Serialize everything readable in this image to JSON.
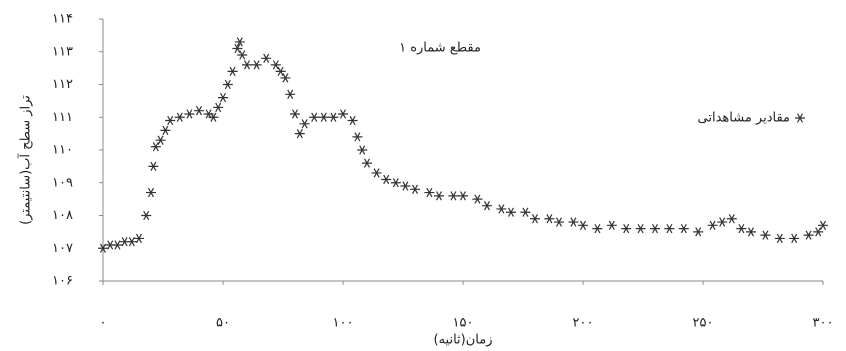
{
  "chart_data": {
    "type": "scatter",
    "title": "مقطع شماره ۱",
    "x_label": "زمان(ثانیه)",
    "y_label": "تراز سطح آب(سانتیمتر)",
    "legend_position": "right",
    "grid": false,
    "xlim": [
      0,
      300
    ],
    "ylim": [
      106,
      114
    ],
    "xticks": [
      {
        "value": 0,
        "label": "۰"
      },
      {
        "value": 50,
        "label": "۵۰"
      },
      {
        "value": 100,
        "label": "۱۰۰"
      },
      {
        "value": 150,
        "label": "۱۵۰"
      },
      {
        "value": 200,
        "label": "۲۰۰"
      },
      {
        "value": 250,
        "label": "۲۵۰"
      },
      {
        "value": 300,
        "label": "۳۰۰"
      }
    ],
    "yticks": [
      {
        "value": 106,
        "label": "۱۰۶"
      },
      {
        "value": 107,
        "label": "۱۰۷"
      },
      {
        "value": 108,
        "label": "۱۰۸"
      },
      {
        "value": 109,
        "label": "۱۰۹"
      },
      {
        "value": 110,
        "label": "۱۱۰"
      },
      {
        "value": 111,
        "label": "۱۱۱"
      },
      {
        "value": 112,
        "label": "۱۱۲"
      },
      {
        "value": 113,
        "label": "۱۱۳"
      },
      {
        "value": 114,
        "label": "۱۱۴"
      }
    ],
    "series": [
      {
        "name": "مقادیر مشاهداتی",
        "color": "#333333",
        "x": [
          0,
          3,
          6,
          9,
          12,
          15,
          18,
          20,
          21,
          22,
          24,
          26,
          28,
          32,
          36,
          40,
          44,
          46,
          48,
          50,
          52,
          54,
          56,
          57,
          58,
          60,
          64,
          68,
          72,
          74,
          76,
          78,
          80,
          82,
          84,
          88,
          92,
          96,
          100,
          104,
          106,
          108,
          110,
          114,
          118,
          122,
          126,
          130,
          136,
          140,
          146,
          150,
          156,
          160,
          166,
          170,
          176,
          180,
          186,
          190,
          196,
          200,
          206,
          212,
          218,
          224,
          230,
          236,
          242,
          248,
          254,
          258,
          262,
          266,
          270,
          276,
          282,
          288,
          294,
          298,
          300
        ],
        "values": [
          107.0,
          107.1,
          107.1,
          107.2,
          107.2,
          107.3,
          108.0,
          108.7,
          109.5,
          110.1,
          110.3,
          110.6,
          110.9,
          111.0,
          111.1,
          111.2,
          111.1,
          111.0,
          111.3,
          111.6,
          112.0,
          112.4,
          113.1,
          113.3,
          112.9,
          112.6,
          112.6,
          112.8,
          112.6,
          112.4,
          112.2,
          111.7,
          111.1,
          110.5,
          110.8,
          111.0,
          111.0,
          111.0,
          111.1,
          110.9,
          110.4,
          110.0,
          109.6,
          109.3,
          109.1,
          109.0,
          108.9,
          108.8,
          108.7,
          108.6,
          108.6,
          108.6,
          108.5,
          108.3,
          108.2,
          108.1,
          108.1,
          107.9,
          107.9,
          107.8,
          107.8,
          107.7,
          107.6,
          107.7,
          107.6,
          107.6,
          107.6,
          107.6,
          107.6,
          107.5,
          107.7,
          107.8,
          107.9,
          107.6,
          107.5,
          107.4,
          107.3,
          107.3,
          107.4,
          107.5,
          107.7
        ]
      }
    ]
  }
}
